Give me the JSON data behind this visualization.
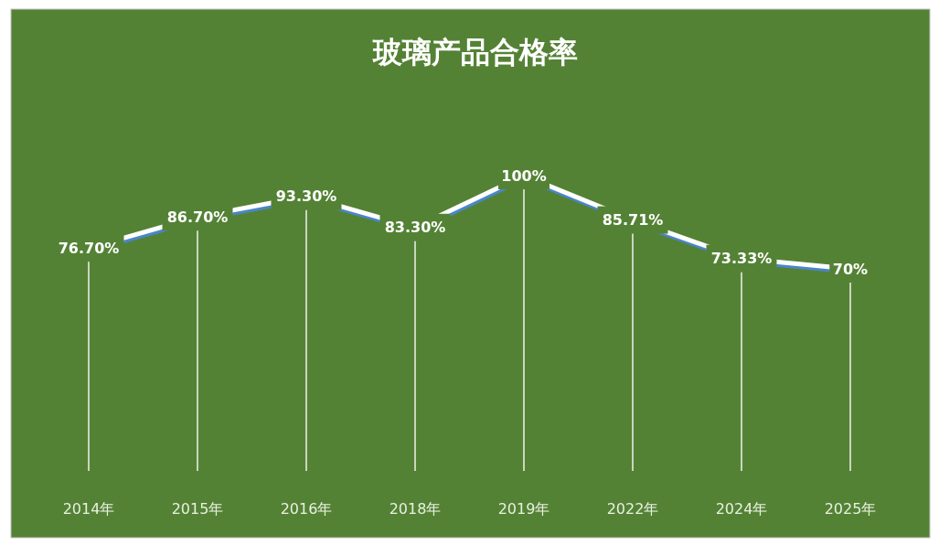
{
  "chart_data": {
    "type": "line",
    "title": "玻璃产品合格率",
    "categories": [
      "2014年",
      "2015年",
      "2016年",
      "2018年",
      "2019年",
      "2022年",
      "2024年",
      "2025年"
    ],
    "series": [
      {
        "color": "#ffffff",
        "values": [
          76.7,
          86.7,
          93.3,
          83.3,
          100,
          85.71,
          73.33,
          70
        ],
        "value_labels": [
          "76.70%",
          "86.70%",
          "93.30%",
          "83.30%",
          "100%",
          "85.71%",
          "73.33%",
          "70%"
        ]
      }
    ],
    "line_style": "solid",
    "grid": "x",
    "tick_labels": "x"
  }
}
